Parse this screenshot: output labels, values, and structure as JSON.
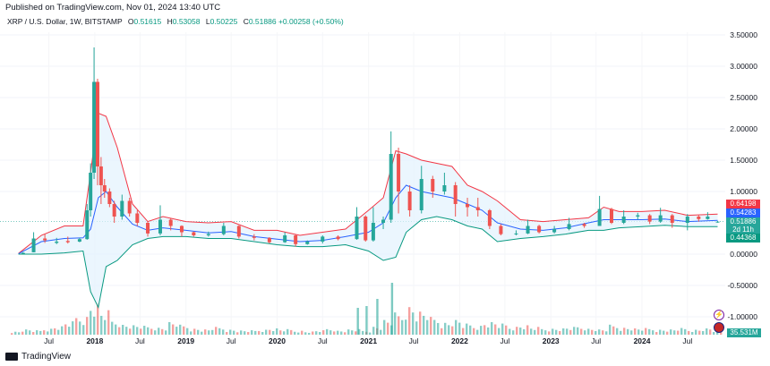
{
  "published": "Published on TradingView.com, Nov 01, 2024 13:40 UTC",
  "legend": {
    "symbol": "XRP / U.S. Dollar, 1W, BITSTAMP",
    "o_label": "O",
    "o": "0.51615",
    "h_label": "H",
    "h": "0.53058",
    "l_label": "L",
    "l": "0.50225",
    "c_label": "C",
    "c": "0.51886",
    "change": "+0.00258 (+0.50%)"
  },
  "badges": {
    "upper": "0.64198",
    "mid": "0.54283",
    "close": "0.51886",
    "countdown": "2d 11h",
    "lower": "0.44368",
    "volume": "35.531M"
  },
  "footer": {
    "brand": "TradingView"
  },
  "colors": {
    "up": "#26a69a",
    "down": "#ef5350",
    "upper_band": "#f23645",
    "basis": "#2962ff",
    "lower_band": "#089981",
    "band_fill": "#e3f2fd"
  },
  "chart_data": {
    "type": "candlestick",
    "title": "XRP / U.S. Dollar, 1W, BITSTAMP",
    "y_ticks": [
      "3.50000",
      "3.00000",
      "2.50000",
      "2.00000",
      "1.50000",
      "1.00000",
      "0.00000",
      "-0.50000",
      "-1.00000"
    ],
    "x_ticks": [
      {
        "label": "Jul",
        "year": false
      },
      {
        "label": "2018",
        "year": true
      },
      {
        "label": "Jul",
        "year": false
      },
      {
        "label": "2019",
        "year": true
      },
      {
        "label": "Jul",
        "year": false
      },
      {
        "label": "2020",
        "year": true
      },
      {
        "label": "Jul",
        "year": false
      },
      {
        "label": "2021",
        "year": true
      },
      {
        "label": "Jul",
        "year": false
      },
      {
        "label": "2022",
        "year": true
      },
      {
        "label": "Jul",
        "year": false
      },
      {
        "label": "2023",
        "year": true
      },
      {
        "label": "Jul",
        "year": false
      },
      {
        "label": "2024",
        "year": true
      },
      {
        "label": "Jul",
        "year": false
      }
    ],
    "x_dates": [
      "2017-07-01",
      "2018-01-01",
      "2018-07-01",
      "2019-01-01",
      "2019-07-01",
      "2020-01-01",
      "2020-07-01",
      "2021-01-01",
      "2021-07-01",
      "2022-01-01",
      "2022-07-01",
      "2023-01-01",
      "2023-07-01",
      "2024-01-01",
      "2024-07-01"
    ],
    "ylim": [
      -1.0,
      3.5
    ],
    "bollinger": {
      "dates": [
        "2017-03-01",
        "2017-06-01",
        "2017-09-01",
        "2017-11-15",
        "2017-12-15",
        "2018-01-15",
        "2018-02-15",
        "2018-04-01",
        "2018-06-01",
        "2018-08-01",
        "2018-10-01",
        "2019-01-01",
        "2019-04-01",
        "2019-07-01",
        "2019-10-01",
        "2020-01-01",
        "2020-04-01",
        "2020-07-01",
        "2020-10-01",
        "2021-01-01",
        "2021-03-01",
        "2021-04-20",
        "2021-06-01",
        "2021-08-01",
        "2021-10-01",
        "2021-12-01",
        "2022-02-01",
        "2022-04-01",
        "2022-06-01",
        "2022-09-01",
        "2022-12-01",
        "2023-03-01",
        "2023-06-01",
        "2023-08-01",
        "2023-10-01",
        "2024-01-01",
        "2024-04-01",
        "2024-07-01",
        "2024-10-30"
      ],
      "upper": [
        0.01,
        0.3,
        0.45,
        0.45,
        1.3,
        2.25,
        2.2,
        1.7,
        0.8,
        0.52,
        0.6,
        0.52,
        0.5,
        0.52,
        0.38,
        0.38,
        0.3,
        0.35,
        0.4,
        0.7,
        0.9,
        1.65,
        1.6,
        1.5,
        1.45,
        1.4,
        1.1,
        1.0,
        0.85,
        0.55,
        0.52,
        0.55,
        0.58,
        0.75,
        0.68,
        0.68,
        0.7,
        0.62,
        0.64
      ],
      "basis": [
        0.005,
        0.2,
        0.25,
        0.26,
        0.4,
        0.9,
        1.0,
        0.75,
        0.48,
        0.38,
        0.42,
        0.38,
        0.34,
        0.36,
        0.28,
        0.24,
        0.2,
        0.22,
        0.28,
        0.35,
        0.5,
        0.9,
        1.1,
        1.0,
        0.95,
        0.9,
        0.8,
        0.7,
        0.5,
        0.4,
        0.38,
        0.42,
        0.5,
        0.55,
        0.55,
        0.55,
        0.56,
        0.52,
        0.54
      ],
      "lower": [
        0.0,
        0.0,
        0.02,
        0.05,
        -0.6,
        -0.85,
        -0.2,
        -0.1,
        0.15,
        0.25,
        0.28,
        0.28,
        0.25,
        0.25,
        0.2,
        0.15,
        0.12,
        0.12,
        0.15,
        0.05,
        -0.1,
        -0.05,
        0.35,
        0.55,
        0.6,
        0.55,
        0.45,
        0.4,
        0.2,
        0.25,
        0.28,
        0.32,
        0.38,
        0.38,
        0.42,
        0.44,
        0.46,
        0.44,
        0.44
      ]
    },
    "candles": [
      [
        "2017-03-20",
        0.01,
        0.03,
        0.01,
        0.02
      ],
      [
        "2017-05-01",
        0.03,
        0.35,
        0.03,
        0.25
      ],
      [
        "2017-06-15",
        0.25,
        0.32,
        0.18,
        0.22
      ],
      [
        "2017-08-01",
        0.18,
        0.26,
        0.16,
        0.2
      ],
      [
        "2017-09-15",
        0.21,
        0.28,
        0.17,
        0.19
      ],
      [
        "2017-11-01",
        0.2,
        0.26,
        0.19,
        0.24
      ],
      [
        "2017-12-01",
        0.24,
        0.8,
        0.23,
        0.7
      ],
      [
        "2017-12-15",
        0.7,
        1.45,
        0.6,
        1.3
      ],
      [
        "2017-12-29",
        1.3,
        3.3,
        1.2,
        2.75
      ],
      [
        "2018-01-12",
        2.75,
        2.8,
        1.1,
        1.4
      ],
      [
        "2018-01-26",
        1.4,
        1.55,
        0.8,
        1.1
      ],
      [
        "2018-02-09",
        1.1,
        1.2,
        0.9,
        1.0
      ],
      [
        "2018-03-01",
        1.0,
        1.05,
        0.75,
        0.8
      ],
      [
        "2018-03-20",
        0.8,
        0.85,
        0.5,
        0.6
      ],
      [
        "2018-04-20",
        0.6,
        0.95,
        0.55,
        0.85
      ],
      [
        "2018-05-20",
        0.85,
        0.9,
        0.6,
        0.65
      ],
      [
        "2018-06-20",
        0.65,
        0.7,
        0.45,
        0.5
      ],
      [
        "2018-08-01",
        0.5,
        0.52,
        0.28,
        0.33
      ],
      [
        "2018-09-20",
        0.33,
        0.78,
        0.3,
        0.55
      ],
      [
        "2018-11-01",
        0.55,
        0.58,
        0.38,
        0.45
      ],
      [
        "2018-12-15",
        0.45,
        0.46,
        0.28,
        0.35
      ],
      [
        "2019-02-01",
        0.35,
        0.36,
        0.28,
        0.3
      ],
      [
        "2019-04-01",
        0.3,
        0.36,
        0.28,
        0.32
      ],
      [
        "2019-06-01",
        0.32,
        0.5,
        0.3,
        0.45
      ],
      [
        "2019-08-01",
        0.45,
        0.46,
        0.25,
        0.28
      ],
      [
        "2019-10-01",
        0.28,
        0.32,
        0.22,
        0.26
      ],
      [
        "2019-12-01",
        0.26,
        0.27,
        0.17,
        0.19
      ],
      [
        "2020-02-01",
        0.19,
        0.35,
        0.18,
        0.3
      ],
      [
        "2020-03-15",
        0.3,
        0.31,
        0.12,
        0.16
      ],
      [
        "2020-05-01",
        0.16,
        0.22,
        0.15,
        0.2
      ],
      [
        "2020-07-01",
        0.2,
        0.3,
        0.17,
        0.28
      ],
      [
        "2020-09-01",
        0.28,
        0.3,
        0.22,
        0.24
      ],
      [
        "2020-11-15",
        0.24,
        0.75,
        0.23,
        0.6
      ],
      [
        "2020-12-20",
        0.6,
        0.62,
        0.2,
        0.22
      ],
      [
        "2021-01-20",
        0.22,
        0.75,
        0.2,
        0.5
      ],
      [
        "2021-03-01",
        0.5,
        0.6,
        0.4,
        0.55
      ],
      [
        "2021-04-01",
        0.55,
        1.96,
        0.5,
        1.6
      ],
      [
        "2021-05-01",
        1.6,
        1.7,
        0.65,
        1.0
      ],
      [
        "2021-06-15",
        1.0,
        1.1,
        0.6,
        0.7
      ],
      [
        "2021-08-01",
        0.7,
        1.41,
        0.65,
        1.2
      ],
      [
        "2021-09-15",
        1.2,
        1.25,
        0.9,
        1.0
      ],
      [
        "2021-11-01",
        1.0,
        1.3,
        0.95,
        1.1
      ],
      [
        "2021-12-15",
        1.1,
        1.15,
        0.6,
        0.8
      ],
      [
        "2022-02-01",
        0.8,
        0.9,
        0.6,
        0.75
      ],
      [
        "2022-03-15",
        0.75,
        0.9,
        0.6,
        0.7
      ],
      [
        "2022-05-01",
        0.7,
        0.72,
        0.4,
        0.45
      ],
      [
        "2022-06-15",
        0.45,
        0.48,
        0.3,
        0.32
      ],
      [
        "2022-08-15",
        0.32,
        0.38,
        0.3,
        0.33
      ],
      [
        "2022-10-01",
        0.33,
        0.55,
        0.32,
        0.45
      ],
      [
        "2022-11-15",
        0.45,
        0.47,
        0.33,
        0.35
      ],
      [
        "2023-01-15",
        0.35,
        0.45,
        0.33,
        0.4
      ],
      [
        "2023-03-15",
        0.4,
        0.58,
        0.38,
        0.48
      ],
      [
        "2023-05-15",
        0.48,
        0.5,
        0.42,
        0.45
      ],
      [
        "2023-07-15",
        0.45,
        0.93,
        0.45,
        0.72
      ],
      [
        "2023-09-01",
        0.72,
        0.74,
        0.48,
        0.5
      ],
      [
        "2023-10-20",
        0.5,
        0.7,
        0.48,
        0.6
      ],
      [
        "2023-12-15",
        0.6,
        0.66,
        0.55,
        0.62
      ],
      [
        "2024-02-01",
        0.62,
        0.64,
        0.48,
        0.52
      ],
      [
        "2024-03-15",
        0.52,
        0.74,
        0.5,
        0.62
      ],
      [
        "2024-05-01",
        0.62,
        0.64,
        0.42,
        0.5
      ],
      [
        "2024-07-01",
        0.5,
        0.64,
        0.38,
        0.6
      ],
      [
        "2024-08-15",
        0.6,
        0.62,
        0.52,
        0.56
      ],
      [
        "2024-09-20",
        0.56,
        0.67,
        0.55,
        0.6
      ],
      [
        "2024-10-30",
        0.51615,
        0.53058,
        0.50225,
        0.51886
      ]
    ]
  }
}
